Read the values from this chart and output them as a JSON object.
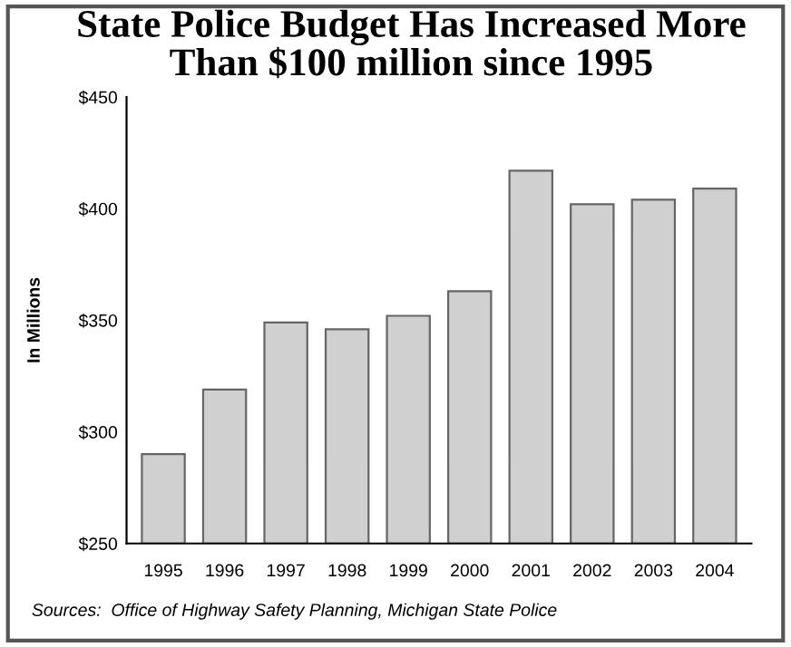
{
  "chart_data": {
    "type": "bar",
    "title": "State Police Budget Has Increased More\nThan $100 million since 1995",
    "ylabel": "In Millions",
    "categories": [
      "1995",
      "1996",
      "1997",
      "1998",
      "1999",
      "2000",
      "2001",
      "2002",
      "2003",
      "2004"
    ],
    "values": [
      290,
      319,
      349,
      346,
      352,
      363,
      417,
      402,
      404,
      409
    ],
    "color": "#d0d0d0",
    "ylim": [
      250,
      450
    ],
    "yticks": [
      {
        "value": 250,
        "label": "$250"
      },
      {
        "value": 300,
        "label": "$300"
      },
      {
        "value": 350,
        "label": "$350"
      },
      {
        "value": 400,
        "label": "$400"
      },
      {
        "value": 450,
        "label": "$450"
      }
    ],
    "grid": false,
    "annotations": [
      "Sources:  Office of Highway Safety Planning, Michigan State Police"
    ]
  }
}
